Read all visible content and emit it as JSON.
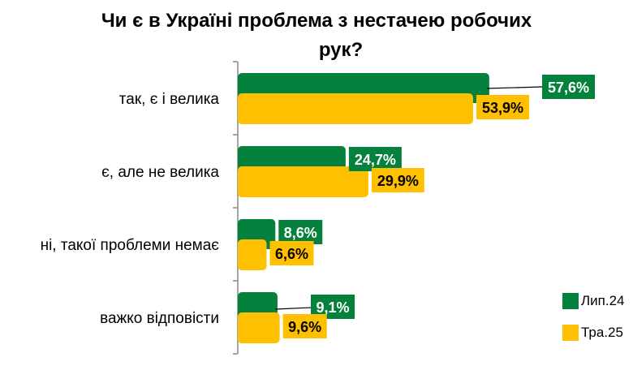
{
  "chart_data": {
    "type": "bar",
    "orientation": "horizontal",
    "title": "Чи є в Україні проблема з нестачею робочих рук?",
    "title_lines": [
      "Чи є в Україні проблема з нестачею робочих",
      "рук?"
    ],
    "categories": [
      "так, є і велика",
      "є, але не велика",
      "ні, такої проблеми немає",
      "важко відповісти"
    ],
    "series": [
      {
        "name": "Лип.24",
        "color": "#05813E",
        "label_color": "#ffffff",
        "values": [
          57.6,
          24.7,
          8.6,
          9.1
        ],
        "labels": [
          "57,6%",
          "24,7%",
          "8,6%",
          "9,1%"
        ]
      },
      {
        "name": "Тра.25",
        "color": "#FFC000",
        "label_color": "#000000",
        "values": [
          53.9,
          29.9,
          6.6,
          9.6
        ],
        "labels": [
          "53,9%",
          "29,9%",
          "6,6%",
          "9,6%"
        ]
      }
    ],
    "xlim": [
      0,
      80
    ],
    "grid": false,
    "legend_position": "bottom-right"
  }
}
